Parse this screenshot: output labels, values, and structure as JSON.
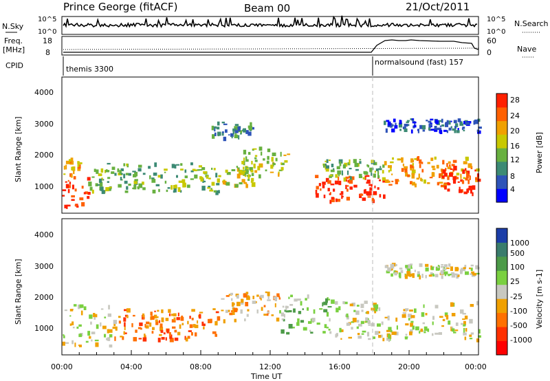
{
  "header": {
    "station": "Prince George (fitACF)",
    "beam": "Beam 00",
    "date": "21/Oct/2011"
  },
  "noise_panel": {
    "left_label": "N.Sky",
    "right_label": "N.Search",
    "left_ticks": [
      "10^5",
      "10^0"
    ],
    "right_ticks": [
      "10^5",
      "10^0"
    ]
  },
  "freq_panel": {
    "left_label_1": "Freq.",
    "left_label_2": "[MHz]",
    "right_label": "Nave",
    "left_ticks": [
      "18",
      "8"
    ],
    "right_ticks": [
      "60",
      "0"
    ]
  },
  "cpid_panel": {
    "label": "CPID",
    "modes": [
      {
        "name": "themis 3300",
        "start_hour": 0
      },
      {
        "name": "normalsound (fast) 157",
        "start_hour": 18.1
      }
    ]
  },
  "time_axis": {
    "label": "Time UT",
    "ticks": [
      "00:00",
      "04:00",
      "08:00",
      "12:00",
      "16:00",
      "20:00",
      "00:00"
    ],
    "range_hours": [
      0,
      24
    ]
  },
  "power_panel": {
    "ylabel": "Slant Range [km]",
    "yticks": [
      "1000",
      "2000",
      "3000",
      "4000"
    ],
    "colorbar_label": "Power [dB]",
    "colorbar_ticks": [
      "4",
      "8",
      "12",
      "16",
      "20",
      "24",
      "28"
    ],
    "colors": [
      "#0000ff",
      "#2e53b8",
      "#3c8a74",
      "#68b040",
      "#c8c800",
      "#f0a000",
      "#ff6000",
      "#ff2000"
    ]
  },
  "velocity_panel": {
    "ylabel": "Slant Range [km]",
    "yticks": [
      "1000",
      "2000",
      "3000",
      "4000"
    ],
    "colorbar_label": "Velocity [m s-1]",
    "colorbar_ticks": [
      "1000",
      "500",
      "100",
      "25",
      "-25",
      "-100",
      "-500",
      "-1000"
    ],
    "colors": [
      "#1c3ea8",
      "#3a7c6c",
      "#4c9a48",
      "#7ad040",
      "#c8c8c0",
      "#f0a000",
      "#ff7000",
      "#ff3000",
      "#ff0000"
    ]
  },
  "chart_data": {
    "type": "heatmap",
    "x_range_hours": [
      0,
      24
    ],
    "y_range_km": [
      180,
      4500
    ],
    "power_regions": [
      {
        "t": [
          0.0,
          1.5
        ],
        "r": [
          400,
          1400
        ],
        "level": 7
      },
      {
        "t": [
          0.0,
          1.0
        ],
        "r": [
          1400,
          2000
        ],
        "level": 5
      },
      {
        "t": [
          1.5,
          9.0
        ],
        "r": [
          900,
          1800
        ],
        "level": 3
      },
      {
        "t": [
          9.0,
          11.0
        ],
        "r": [
          1100,
          1700
        ],
        "level": 4
      },
      {
        "t": [
          10.0,
          13.0
        ],
        "r": [
          1400,
          2300
        ],
        "level": 4
      },
      {
        "t": [
          14.5,
          18.5
        ],
        "r": [
          600,
          1400
        ],
        "level": 7
      },
      {
        "t": [
          15.0,
          18.5
        ],
        "r": [
          1300,
          1900
        ],
        "level": 3
      },
      {
        "t": [
          18.5,
          24.0
        ],
        "r": [
          1100,
          2000
        ],
        "level": 5
      },
      {
        "t": [
          21.8,
          24.0
        ],
        "r": [
          800,
          1700
        ],
        "level": 7
      },
      {
        "t": [
          18.5,
          24.0
        ],
        "r": [
          2800,
          3200
        ],
        "level": 1
      },
      {
        "t": [
          8.5,
          11.0
        ],
        "r": [
          2600,
          3100
        ],
        "level": 2
      }
    ],
    "velocity_regions": [
      {
        "t": [
          0.0,
          3.0
        ],
        "r": [
          500,
          1800
        ],
        "level": 4
      },
      {
        "t": [
          3.0,
          9.0
        ],
        "r": [
          700,
          1700
        ],
        "level": 6
      },
      {
        "t": [
          9.0,
          12.5
        ],
        "r": [
          1300,
          2200
        ],
        "level": 5
      },
      {
        "t": [
          12.5,
          15.5
        ],
        "r": [
          900,
          2100
        ],
        "level": 3
      },
      {
        "t": [
          15.5,
          24.0
        ],
        "r": [
          700,
          1900
        ],
        "level": 4
      },
      {
        "t": [
          18.5,
          24.0
        ],
        "r": [
          2700,
          3100
        ],
        "level": 4
      }
    ]
  }
}
